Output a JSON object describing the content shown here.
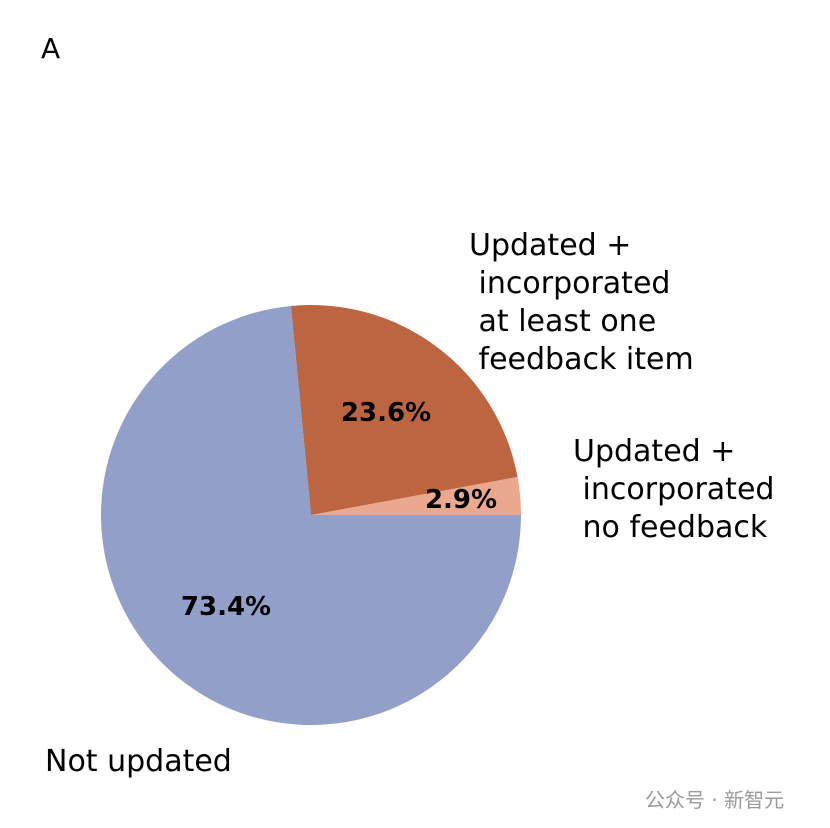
{
  "chart_data": {
    "type": "pie",
    "panel_label": "A",
    "labels": [
      "Updated +\n incorporated\n no feedback",
      "Updated +\n incorporated\n at least one\n feedback item",
      "Not updated"
    ],
    "values": [
      2.9,
      23.6,
      73.4
    ],
    "value_labels": [
      "2.9%",
      "23.6%",
      "73.4%"
    ],
    "colors": [
      "#eaa98f",
      "#bc6540",
      "#929fc8"
    ]
  },
  "watermark": "公众号 · 新智元"
}
